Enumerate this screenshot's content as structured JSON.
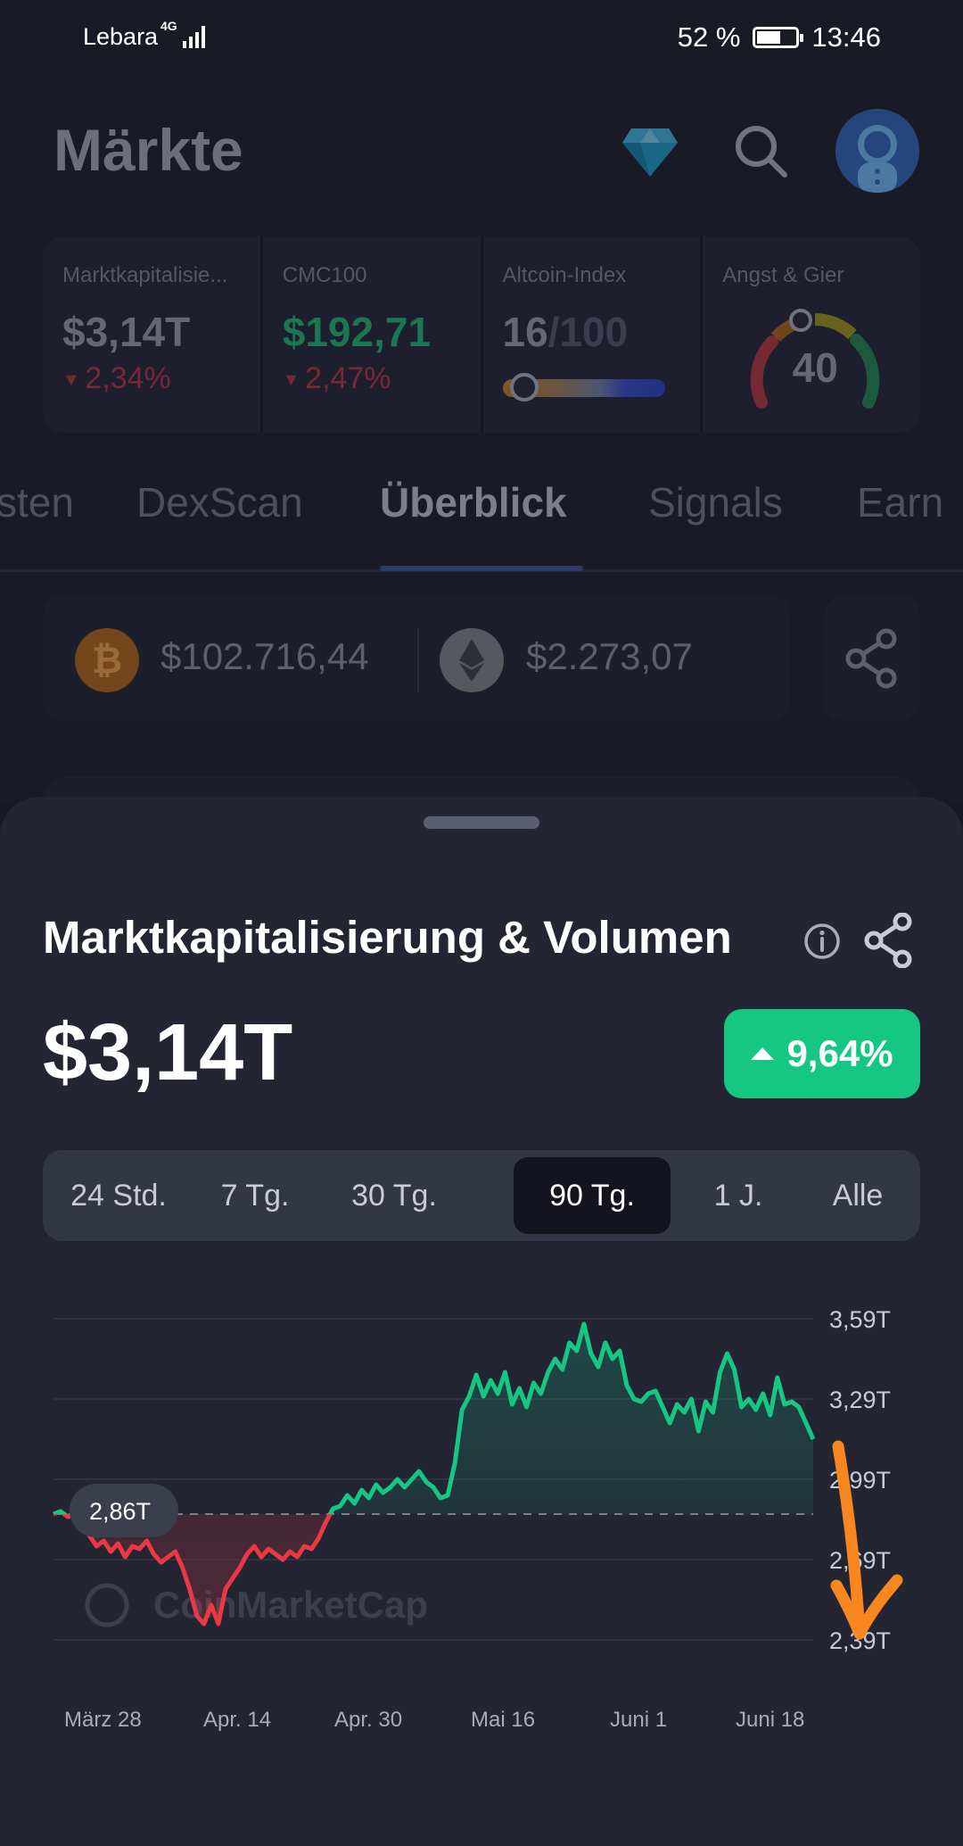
{
  "status_bar": {
    "carrier": "Lebara",
    "network": "4G",
    "battery": "52 %",
    "time": "13:46"
  },
  "header": {
    "title": "Märkte"
  },
  "stats": [
    {
      "label": "Marktkapitalisie...",
      "value": "$3,14T",
      "change": "2,34%"
    },
    {
      "label": "CMC100",
      "value": "$192,71",
      "change": "2,47%"
    },
    {
      "label": "Altcoin-Index",
      "value": "16",
      "max": "/100",
      "level": 0.16
    },
    {
      "label": "Angst & Gier",
      "value": "40",
      "level": 0.4
    }
  ],
  "tabs": [
    "sten",
    "DexScan",
    "Überblick",
    "Signals",
    "Earn"
  ],
  "active_tab": "Überblick",
  "ticker": {
    "btc_symbol": "₿",
    "btc_price": "$102.716,44",
    "eth_price": "$2.273,07"
  },
  "sheet": {
    "title": "Marktkapitalisierung & Volumen",
    "value": "$3,14T",
    "change": "9,64%",
    "ranges": [
      "24 Std.",
      "7 Tg.",
      "30 Tg.",
      "90 Tg.",
      "1 J.",
      "Alle"
    ],
    "active_range": "90 Tg."
  },
  "chart_data": {
    "type": "line",
    "y_ticks": [
      "3,59T",
      "3,29T",
      "2,99T",
      "2,69T",
      "2,39T"
    ],
    "y_tick_values": [
      3.59,
      3.29,
      2.99,
      2.69,
      2.39
    ],
    "x_ticks": [
      "März 28",
      "Apr. 14",
      "Apr. 30",
      "Mai 16",
      "Juni 1",
      "Juni 18"
    ],
    "reference_label": "2,86T",
    "reference_value": 2.86,
    "watermark": "CoinMarketCap",
    "ylim": [
      2.39,
      3.59
    ],
    "values": [
      2.86,
      2.87,
      2.85,
      2.86,
      2.84,
      2.78,
      2.74,
      2.76,
      2.72,
      2.75,
      2.7,
      2.74,
      2.73,
      2.76,
      2.71,
      2.68,
      2.7,
      2.72,
      2.66,
      2.58,
      2.48,
      2.45,
      2.52,
      2.45,
      2.58,
      2.62,
      2.66,
      2.71,
      2.74,
      2.7,
      2.73,
      2.71,
      2.69,
      2.72,
      2.7,
      2.74,
      2.73,
      2.77,
      2.83,
      2.88,
      2.89,
      2.93,
      2.9,
      2.95,
      2.92,
      2.97,
      2.94,
      2.96,
      2.99,
      2.96,
      2.99,
      3.02,
      2.98,
      2.96,
      2.92,
      2.93,
      3.05,
      3.25,
      3.3,
      3.38,
      3.3,
      3.36,
      3.31,
      3.39,
      3.27,
      3.33,
      3.26,
      3.35,
      3.31,
      3.39,
      3.44,
      3.4,
      3.5,
      3.47,
      3.57,
      3.46,
      3.41,
      3.5,
      3.44,
      3.47,
      3.34,
      3.29,
      3.28,
      3.31,
      3.32,
      3.26,
      3.2,
      3.27,
      3.24,
      3.29,
      3.17,
      3.28,
      3.24,
      3.39,
      3.46,
      3.4,
      3.26,
      3.29,
      3.25,
      3.31,
      3.23,
      3.37,
      3.27,
      3.28,
      3.26,
      3.2,
      3.14
    ],
    "series_colors": {
      "above": "#16c784",
      "below": "#ea3943"
    }
  },
  "annotation": {
    "color": "#f7871e"
  }
}
